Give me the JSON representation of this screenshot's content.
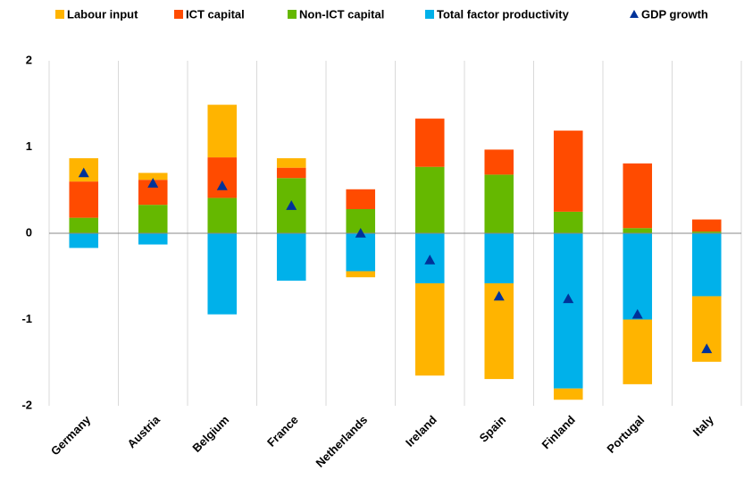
{
  "chart_data": {
    "type": "bar",
    "stacked": true,
    "categories": [
      "Germany",
      "Austria",
      "Belgium",
      "France",
      "Netherlands",
      "Ireland",
      "Spain",
      "Finland",
      "Portugal",
      "Italy"
    ],
    "series": [
      {
        "name": "Labour input",
        "color": "#FFB400",
        "values": [
          0.27,
          0.08,
          0.61,
          0.11,
          -0.07,
          -1.07,
          -1.11,
          -0.13,
          -0.75,
          -0.76
        ]
      },
      {
        "name": "ICT capital",
        "color": "#FF4B00",
        "values": [
          0.42,
          0.29,
          0.47,
          0.12,
          0.23,
          0.56,
          0.29,
          0.94,
          0.75,
          0.14
        ]
      },
      {
        "name": "Non-ICT capital",
        "color": "#65B800",
        "values": [
          0.18,
          0.33,
          0.41,
          0.64,
          0.28,
          0.77,
          0.68,
          0.25,
          0.06,
          0.02
        ]
      },
      {
        "name": "Total factor productivity",
        "color": "#00B1EA",
        "values": [
          -0.17,
          -0.13,
          -0.94,
          -0.55,
          -0.44,
          -0.58,
          -0.58,
          -1.8,
          -1.0,
          -0.73
        ]
      },
      {
        "name": "GDP growth",
        "color": "#003299",
        "type": "scatter",
        "marker": "triangle",
        "values": [
          0.7,
          0.58,
          0.55,
          0.32,
          0.0,
          -0.31,
          -0.73,
          -0.76,
          -0.94,
          -1.34
        ]
      }
    ],
    "ylim": [
      -2,
      2
    ],
    "yticks": [
      -2,
      -1,
      0,
      1,
      2
    ],
    "grid": false
  }
}
